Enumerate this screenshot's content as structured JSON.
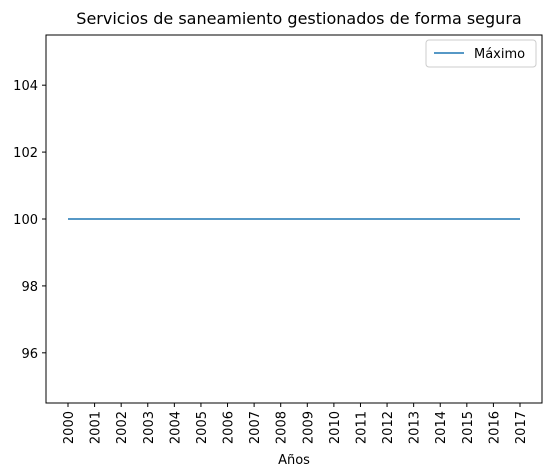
{
  "chart_data": {
    "type": "line",
    "title": "Servicios de saneamiento gestionados de forma segura",
    "xlabel": "Años",
    "ylabel": "",
    "x": [
      "2000",
      "2001",
      "2002",
      "2003",
      "2004",
      "2005",
      "2006",
      "2007",
      "2008",
      "2009",
      "2010",
      "2011",
      "2012",
      "2013",
      "2014",
      "2015",
      "2016",
      "2017"
    ],
    "series": [
      {
        "name": "Máximo",
        "color": "#1f77b4",
        "values": [
          100,
          100,
          100,
          100,
          100,
          100,
          100,
          100,
          100,
          100,
          100,
          100,
          100,
          100,
          100,
          100,
          100,
          100
        ]
      }
    ],
    "ylim": [
      94.5,
      105.5
    ],
    "yticks": [
      96,
      98,
      100,
      102,
      104
    ],
    "grid": false,
    "legend_position": "top-right",
    "x_tick_rotation": "vertical"
  }
}
